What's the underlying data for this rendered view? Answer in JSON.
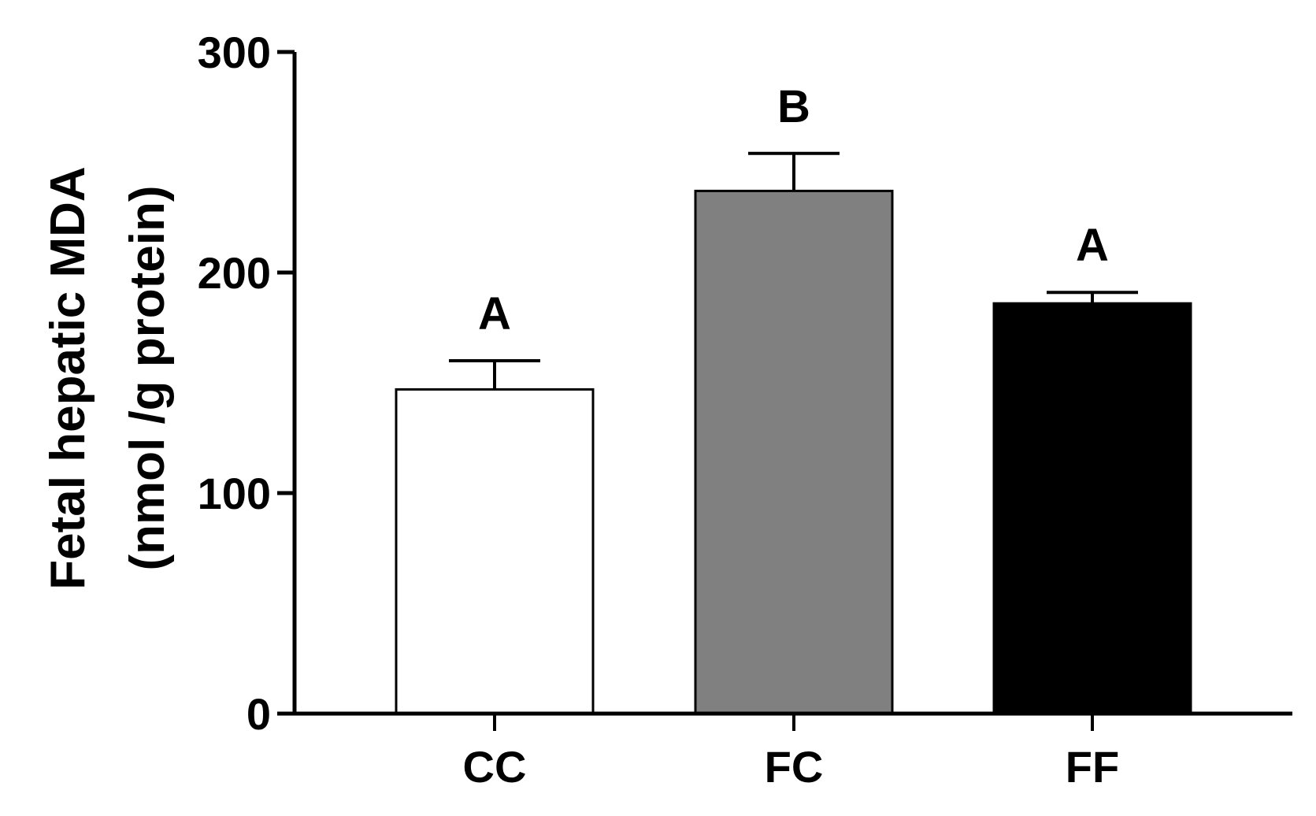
{
  "chart_data": {
    "type": "bar",
    "title": "",
    "xlabel": "",
    "ylabel_line1": "Fetal hepatic MDA",
    "ylabel_line2": "(nmol /g protein)",
    "ylim": [
      0,
      300
    ],
    "yticks": [
      0,
      100,
      200,
      300
    ],
    "grid": false,
    "categories": [
      "CC",
      "FC",
      "FF"
    ],
    "values": [
      147,
      237,
      186
    ],
    "errors": [
      13,
      17,
      5
    ],
    "significance": [
      "A",
      "B",
      "A"
    ],
    "colors": [
      "#ffffff",
      "#808080",
      "#000000"
    ]
  }
}
